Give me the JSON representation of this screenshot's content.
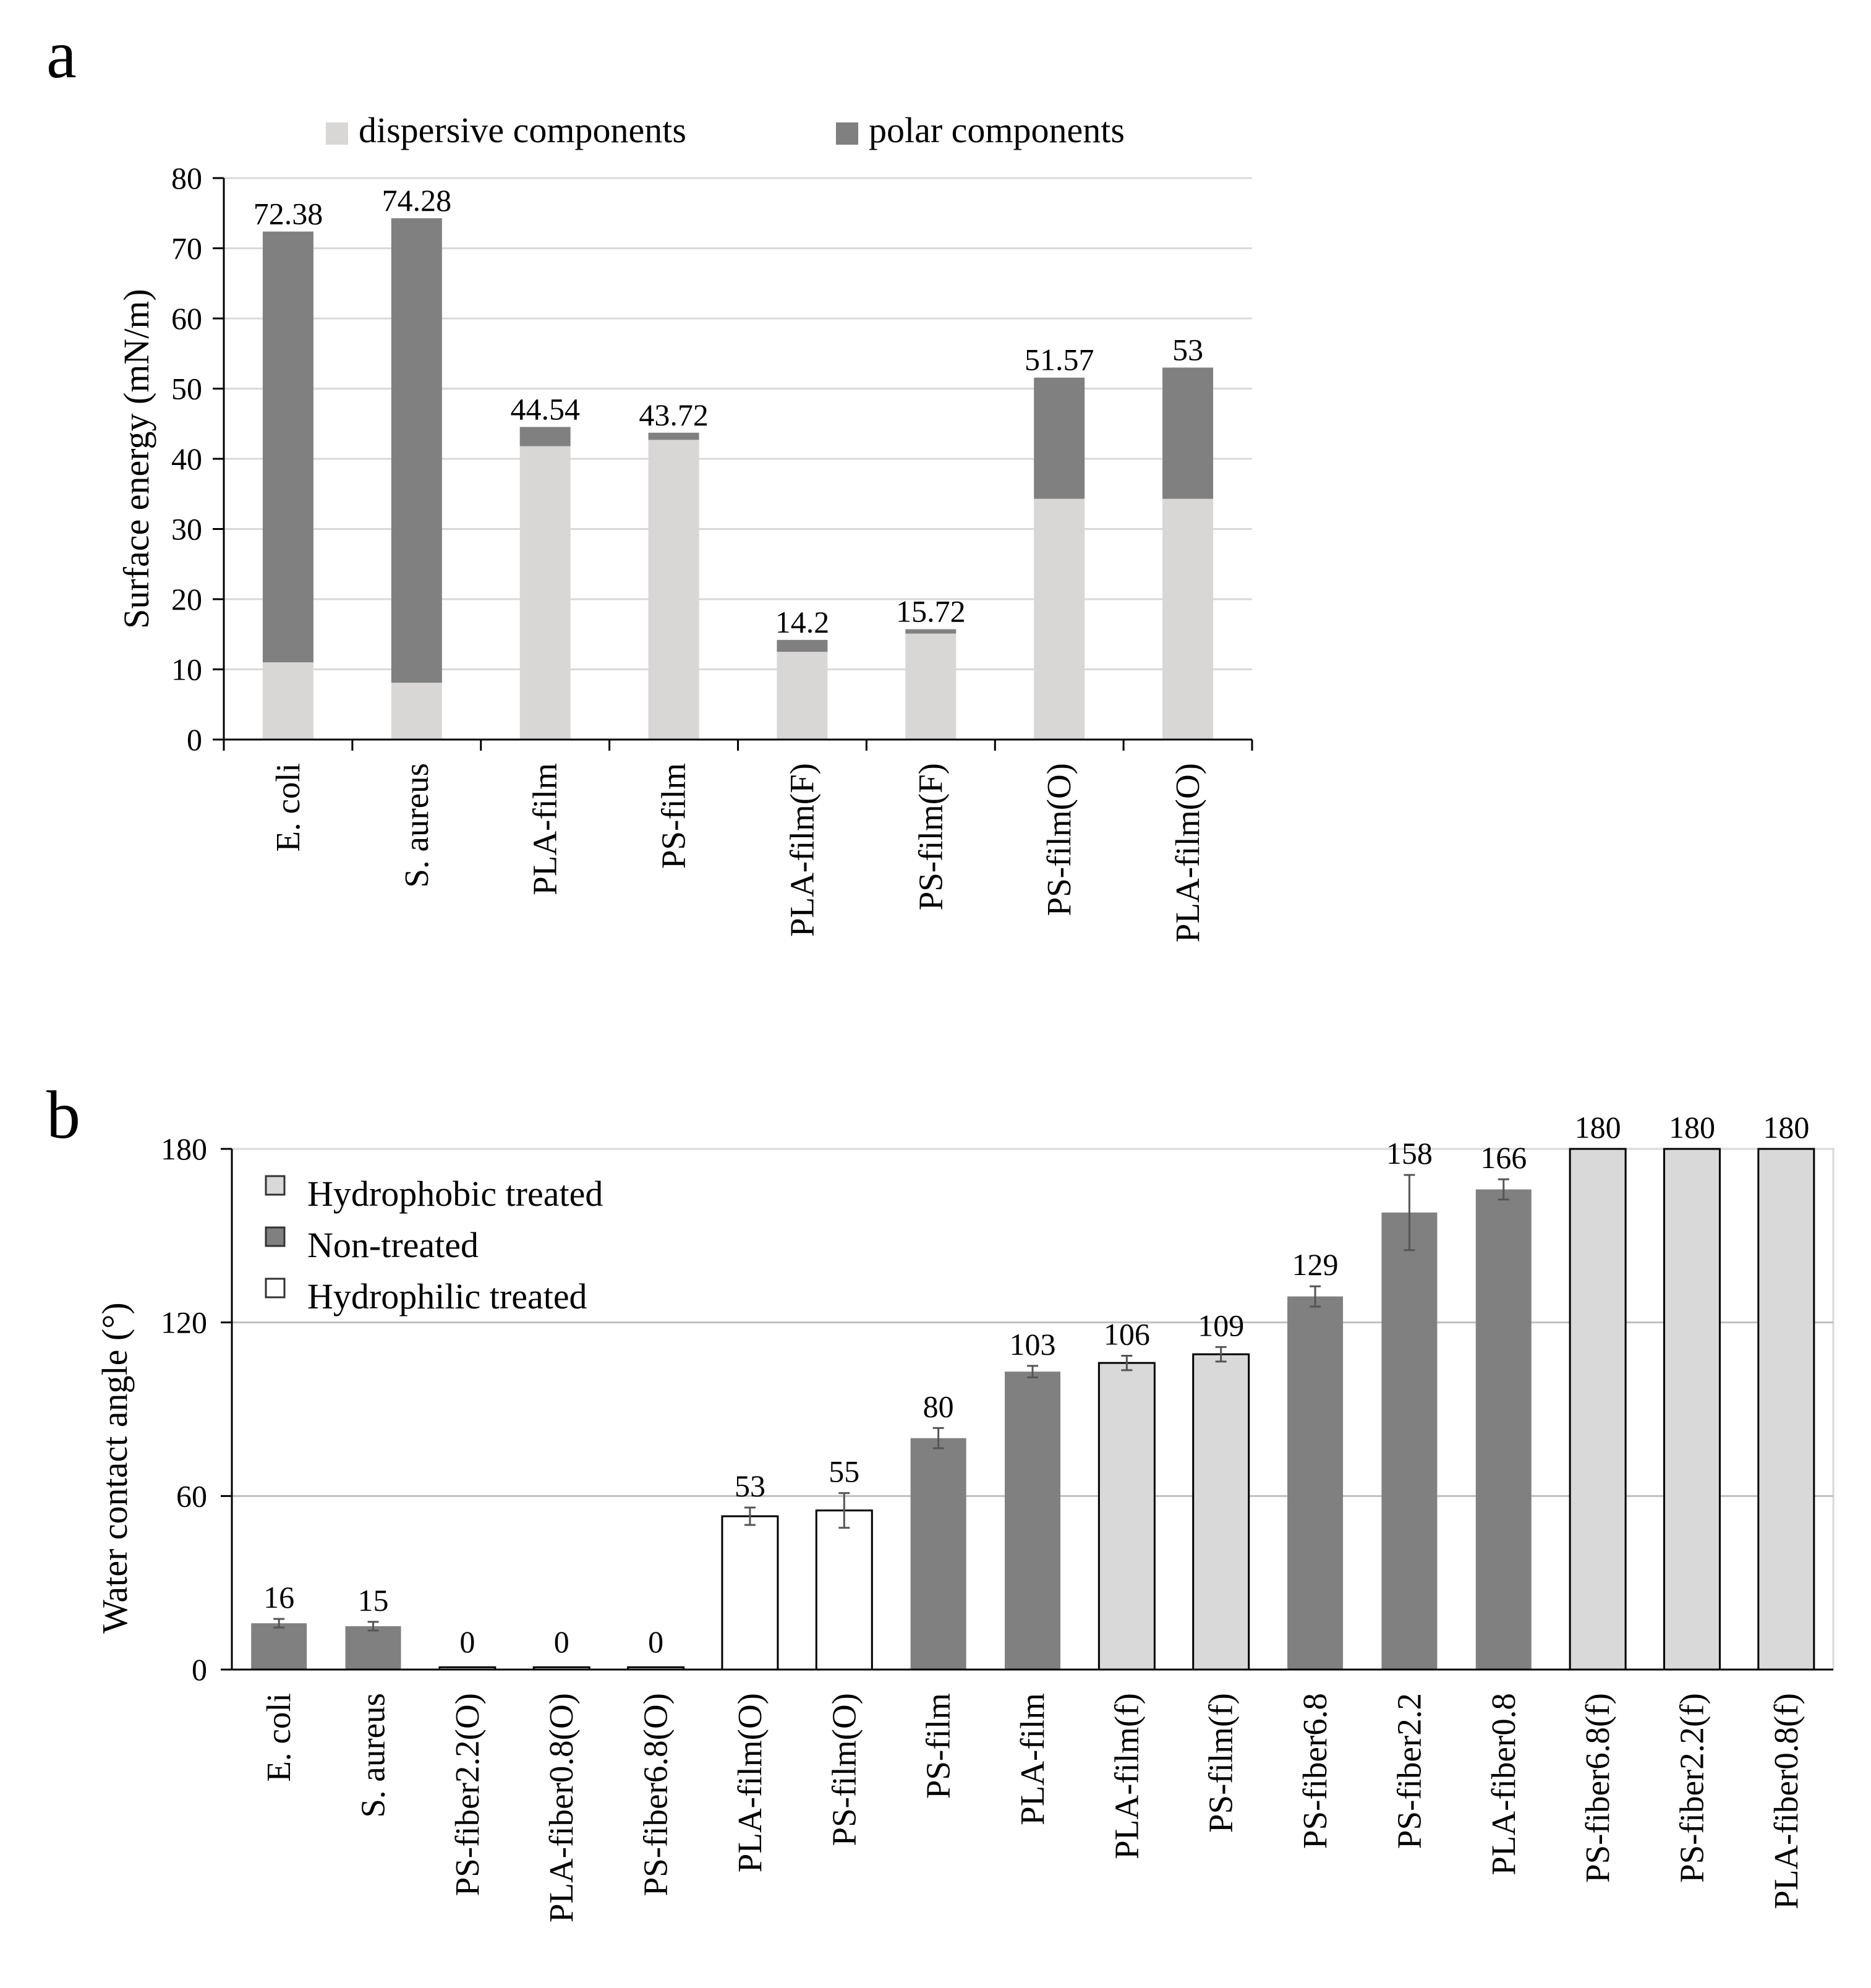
{
  "chart_data": [
    {
      "panel_label": "a",
      "type": "bar",
      "stacked": true,
      "title": "",
      "xlabel": "",
      "ylabel": "Surface energy (mN/m)",
      "ylim": [
        0,
        80
      ],
      "yticks": [
        "0",
        "10",
        "20",
        "30",
        "40",
        "50",
        "60",
        "70",
        "80"
      ],
      "grid": true,
      "legend_position": "top",
      "categories": [
        "E. coli",
        "S. aureus",
        "PLA-film",
        "PS-film",
        "PLA-film(F)",
        "PS-film(F)",
        "PS-film(O)",
        "PLA-film(O)"
      ],
      "series": [
        {
          "name": "dispersive components",
          "color": "#d9d6d6",
          "values": [
            11,
            8.1,
            41.8,
            42.7,
            12.5,
            15.1,
            34.3,
            34.3
          ]
        },
        {
          "name": "polar components",
          "color": "#808080",
          "values": [
            61.38,
            66.18,
            2.74,
            1.02,
            1.7,
            0.62,
            17.27,
            18.7
          ]
        }
      ],
      "totals": [
        72.38,
        74.28,
        44.54,
        43.72,
        14.2,
        15.72,
        51.57,
        53
      ],
      "total_labels": [
        "72.38",
        "74.28",
        "44.54",
        "43.72",
        "14.2",
        "15.72",
        "51.57",
        "53"
      ]
    },
    {
      "panel_label": "b",
      "type": "bar",
      "title": "",
      "xlabel": "",
      "ylabel": "Water contact angle (°)",
      "ylim": [
        0,
        180
      ],
      "yticks": [
        "0",
        "60",
        "120",
        "180"
      ],
      "grid": true,
      "legend_position": "top-left",
      "legend": [
        {
          "name": "Hydrophobic treated",
          "color": "#d9d9d9"
        },
        {
          "name": "Non-treated",
          "color": "#808080"
        },
        {
          "name": "Hydrophilic treated",
          "color": "#ffffff"
        }
      ],
      "categories": [
        "E. coli",
        "S. aureus",
        "PS-fiber2.2(O)",
        "PLA-fiber0.8(O)",
        "PS-fiber6.8(O)",
        "PLA-film(O)",
        "PS-film(O)",
        "PS-film",
        "PLA-film",
        "PLA-film(f)",
        "PS-film(f)",
        "PS-fiber6.8",
        "PS-fiber2.2",
        "PLA-fiber0.8",
        "PS-fiber6.8(f)",
        "PS-fiber2.2(f)",
        "PLA-fiber0.8(f)"
      ],
      "values": [
        16,
        15,
        0,
        0,
        0,
        53,
        55,
        80,
        103,
        106,
        109,
        129,
        158,
        166,
        180,
        180,
        180
      ],
      "value_labels": [
        "16",
        "15",
        "0",
        "0",
        "0",
        "53",
        "55",
        "80",
        "103",
        "106",
        "109",
        "129",
        "158",
        "166",
        "180",
        "180",
        "180"
      ],
      "errors": [
        1.5,
        1.5,
        0,
        0,
        0,
        3,
        6,
        3.5,
        2,
        2.5,
        2.5,
        3.5,
        13,
        3.5,
        0,
        0,
        0
      ],
      "groups": [
        "Non-treated",
        "Non-treated",
        "Hydrophilic treated",
        "Hydrophilic treated",
        "Hydrophilic treated",
        "Hydrophilic treated",
        "Hydrophilic treated",
        "Non-treated",
        "Non-treated",
        "Hydrophobic treated",
        "Hydrophobic treated",
        "Non-treated",
        "Non-treated",
        "Non-treated",
        "Hydrophobic treated",
        "Hydrophobic treated",
        "Hydrophobic treated"
      ]
    }
  ]
}
